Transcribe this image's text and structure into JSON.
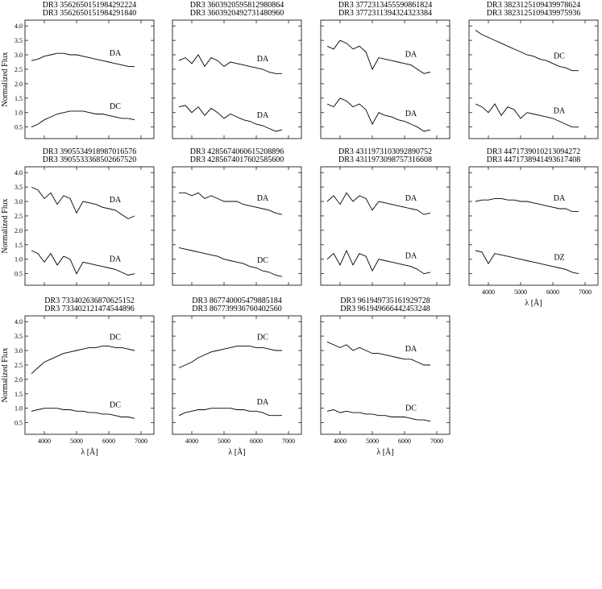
{
  "chart_data": [
    {
      "type": "line",
      "x": [
        3600,
        3800,
        4000,
        4200,
        4400,
        4600,
        4800,
        5000,
        5200,
        5400,
        5600,
        5800,
        6000,
        6200,
        6400,
        6600,
        6800
      ],
      "xlim": [
        3400,
        7400
      ],
      "xticks": [
        4000,
        5000,
        6000,
        7000
      ],
      "ylim": [
        0.1,
        4.2
      ],
      "yticks": [
        0.5,
        {
          "value": 1,
          "label": "1.0"
        },
        1.5,
        {
          "value": 2,
          "label": "2.0"
        },
        2.5,
        {
          "value": 3,
          "label": "3.0"
        },
        3.5,
        {
          "value": 4,
          "label": "4.0"
        }
      ],
      "ylabel": "Normalized Flux",
      "series": [
        {
          "name": "DR3 3562650151984292224",
          "label": "DA",
          "color": "#000000",
          "values": [
            2.8,
            2.85,
            2.95,
            3.0,
            3.05,
            3.05,
            3.0,
            3.0,
            2.95,
            2.9,
            2.85,
            2.8,
            2.75,
            2.7,
            2.65,
            2.6,
            2.6
          ]
        },
        {
          "name": "DR3 3562650151984291840",
          "label": "DC",
          "color": "#000000",
          "values": [
            0.5,
            0.6,
            0.75,
            0.85,
            0.95,
            1.0,
            1.05,
            1.05,
            1.05,
            1.0,
            0.95,
            0.95,
            0.9,
            0.85,
            0.8,
            0.8,
            0.75
          ]
        }
      ]
    },
    {
      "type": "line",
      "x": [
        3600,
        3800,
        4000,
        4200,
        4400,
        4600,
        4800,
        5000,
        5200,
        5400,
        5600,
        5800,
        6000,
        6200,
        6400,
        6600,
        6800
      ],
      "xlim": [
        3400,
        7400
      ],
      "xticks": [
        4000,
        5000,
        6000,
        7000
      ],
      "ylim": [
        0.1,
        4.2
      ],
      "yticks": [
        0.5,
        {
          "value": 1,
          "label": "1.0"
        },
        1.5,
        {
          "value": 2,
          "label": "2.0"
        },
        2.5,
        {
          "value": 3,
          "label": "3.0"
        },
        3.5,
        {
          "value": 4,
          "label": "4.0"
        }
      ],
      "series": [
        {
          "name": "DR3 3603920595812980864",
          "label": "DA",
          "color": "#000000",
          "values": [
            2.8,
            2.9,
            2.7,
            3.0,
            2.6,
            2.9,
            2.8,
            2.6,
            2.75,
            2.7,
            2.65,
            2.6,
            2.55,
            2.5,
            2.4,
            2.35,
            2.35
          ]
        },
        {
          "name": "DR3 3603920492731480960",
          "label": "DA",
          "color": "#000000",
          "values": [
            1.2,
            1.25,
            1.0,
            1.2,
            0.9,
            1.15,
            1.0,
            0.8,
            0.95,
            0.85,
            0.75,
            0.7,
            0.6,
            0.55,
            0.45,
            0.35,
            0.4
          ]
        }
      ]
    },
    {
      "type": "line",
      "x": [
        3600,
        3800,
        4000,
        4200,
        4400,
        4600,
        4800,
        5000,
        5200,
        5400,
        5600,
        5800,
        6000,
        6200,
        6400,
        6600,
        6800
      ],
      "xlim": [
        3400,
        7400
      ],
      "xticks": [
        4000,
        5000,
        6000,
        7000
      ],
      "ylim": [
        0.1,
        4.2
      ],
      "yticks": [
        0.5,
        {
          "value": 1,
          "label": "1.0"
        },
        1.5,
        {
          "value": 2,
          "label": "2.0"
        },
        2.5,
        {
          "value": 3,
          "label": "3.0"
        },
        3.5,
        {
          "value": 4,
          "label": "4.0"
        }
      ],
      "series": [
        {
          "name": "DR3 3772313455590861824",
          "label": "DA",
          "color": "#000000",
          "values": [
            3.3,
            3.2,
            3.5,
            3.4,
            3.2,
            3.3,
            3.1,
            2.5,
            2.9,
            2.85,
            2.8,
            2.75,
            2.7,
            2.65,
            2.5,
            2.35,
            2.4
          ]
        },
        {
          "name": "DR3 3772311394324323384",
          "label": "DA",
          "color": "#000000",
          "values": [
            1.3,
            1.2,
            1.5,
            1.4,
            1.2,
            1.3,
            1.1,
            0.6,
            1.0,
            0.9,
            0.85,
            0.75,
            0.7,
            0.6,
            0.5,
            0.35,
            0.4
          ]
        }
      ]
    },
    {
      "type": "line",
      "x": [
        3600,
        3800,
        4000,
        4200,
        4400,
        4600,
        4800,
        5000,
        5200,
        5400,
        5600,
        5800,
        6000,
        6200,
        6400,
        6600,
        6800
      ],
      "xlim": [
        3400,
        7400
      ],
      "xticks": [
        4000,
        5000,
        6000,
        7000
      ],
      "ylim": [
        0.1,
        4.2
      ],
      "yticks": [
        0.5,
        {
          "value": 1,
          "label": "1.0"
        },
        1.5,
        {
          "value": 2,
          "label": "2.0"
        },
        2.5,
        {
          "value": 3,
          "label": "3.0"
        },
        3.5,
        {
          "value": 4,
          "label": "4.0"
        }
      ],
      "series": [
        {
          "name": "DR3 3823125109439978624",
          "label": "DC",
          "color": "#000000",
          "values": [
            3.85,
            3.7,
            3.6,
            3.5,
            3.4,
            3.3,
            3.2,
            3.1,
            3.0,
            2.95,
            2.85,
            2.8,
            2.7,
            2.6,
            2.55,
            2.45,
            2.45
          ]
        },
        {
          "name": "DR3 3823125109439975936",
          "label": "DA",
          "color": "#000000",
          "values": [
            1.3,
            1.2,
            1.0,
            1.3,
            0.9,
            1.2,
            1.1,
            0.8,
            1.0,
            0.95,
            0.9,
            0.85,
            0.8,
            0.7,
            0.6,
            0.5,
            0.5
          ]
        }
      ]
    },
    {
      "type": "line",
      "x": [
        3600,
        3800,
        4000,
        4200,
        4400,
        4600,
        4800,
        5000,
        5200,
        5400,
        5600,
        5800,
        6000,
        6200,
        6400,
        6600,
        6800
      ],
      "xlim": [
        3400,
        7400
      ],
      "xticks": [
        4000,
        5000,
        6000,
        7000
      ],
      "ylim": [
        0.1,
        4.2
      ],
      "yticks": [
        0.5,
        {
          "value": 1,
          "label": "1.0"
        },
        1.5,
        {
          "value": 2,
          "label": "2.0"
        },
        2.5,
        {
          "value": 3,
          "label": "3.0"
        },
        3.5,
        {
          "value": 4,
          "label": "4.0"
        }
      ],
      "ylabel": "Normalized Flux",
      "series": [
        {
          "name": "DR3 3905534918987016576",
          "label": "DA",
          "color": "#000000",
          "values": [
            3.5,
            3.4,
            3.1,
            3.3,
            2.9,
            3.2,
            3.1,
            2.6,
            3.0,
            2.95,
            2.9,
            2.8,
            2.75,
            2.7,
            2.55,
            2.4,
            2.5
          ]
        },
        {
          "name": "DR3 3905533368502667520",
          "label": "DA",
          "color": "#000000",
          "values": [
            1.3,
            1.2,
            0.9,
            1.2,
            0.8,
            1.1,
            1.0,
            0.5,
            0.9,
            0.85,
            0.8,
            0.75,
            0.7,
            0.65,
            0.55,
            0.45,
            0.5
          ]
        }
      ]
    },
    {
      "type": "line",
      "x": [
        3600,
        3800,
        4000,
        4200,
        4400,
        4600,
        4800,
        5000,
        5200,
        5400,
        5600,
        5800,
        6000,
        6200,
        6400,
        6600,
        6800
      ],
      "xlim": [
        3400,
        7400
      ],
      "xticks": [
        4000,
        5000,
        6000,
        7000
      ],
      "ylim": [
        0.1,
        4.2
      ],
      "yticks": [
        0.5,
        {
          "value": 1,
          "label": "1.0"
        },
        1.5,
        {
          "value": 2,
          "label": "2.0"
        },
        2.5,
        {
          "value": 3,
          "label": "3.0"
        },
        3.5,
        {
          "value": 4,
          "label": "4.0"
        }
      ],
      "series": [
        {
          "name": "DR3 4285674060615208896",
          "label": "DA",
          "color": "#000000",
          "values": [
            3.3,
            3.3,
            3.2,
            3.3,
            3.1,
            3.2,
            3.1,
            3.0,
            3.0,
            3.0,
            2.9,
            2.85,
            2.8,
            2.75,
            2.7,
            2.6,
            2.55
          ]
        },
        {
          "name": "DR3 4285674017602585600",
          "label": "DC",
          "color": "#000000",
          "values": [
            1.4,
            1.35,
            1.3,
            1.25,
            1.2,
            1.15,
            1.1,
            1.0,
            0.95,
            0.9,
            0.85,
            0.75,
            0.7,
            0.6,
            0.55,
            0.45,
            0.4
          ]
        }
      ]
    },
    {
      "type": "line",
      "x": [
        3600,
        3800,
        4000,
        4200,
        4400,
        4600,
        4800,
        5000,
        5200,
        5400,
        5600,
        5800,
        6000,
        6200,
        6400,
        6600,
        6800
      ],
      "xlim": [
        3400,
        7400
      ],
      "xticks": [
        4000,
        5000,
        6000,
        7000
      ],
      "ylim": [
        0.1,
        4.2
      ],
      "yticks": [
        0.5,
        {
          "value": 1,
          "label": "1.0"
        },
        1.5,
        {
          "value": 2,
          "label": "2.0"
        },
        2.5,
        {
          "value": 3,
          "label": "3.0"
        },
        3.5,
        {
          "value": 4,
          "label": "4.0"
        }
      ],
      "series": [
        {
          "name": "DR3 4311973103092890752",
          "label": "DA",
          "color": "#000000",
          "values": [
            3.0,
            3.2,
            2.9,
            3.3,
            3.0,
            3.2,
            3.1,
            2.7,
            3.0,
            2.95,
            2.9,
            2.85,
            2.8,
            2.75,
            2.7,
            2.55,
            2.6
          ]
        },
        {
          "name": "DR3 4311973098757316608",
          "label": "DA",
          "color": "#000000",
          "values": [
            1.0,
            1.2,
            0.8,
            1.3,
            0.8,
            1.2,
            1.1,
            0.6,
            1.0,
            0.95,
            0.9,
            0.85,
            0.8,
            0.75,
            0.65,
            0.5,
            0.55
          ]
        }
      ]
    },
    {
      "type": "line",
      "x": [
        3600,
        3800,
        4000,
        4200,
        4400,
        4600,
        4800,
        5000,
        5200,
        5400,
        5600,
        5800,
        6000,
        6200,
        6400,
        6600,
        6800
      ],
      "xlim": [
        3400,
        7400
      ],
      "xticks": [
        4000,
        5000,
        6000,
        7000
      ],
      "ylim": [
        0.1,
        4.2
      ],
      "yticks": [
        0.5,
        {
          "value": 1,
          "label": "1.0"
        },
        1.5,
        {
          "value": 2,
          "label": "2.0"
        },
        2.5,
        {
          "value": 3,
          "label": "3.0"
        },
        3.5,
        {
          "value": 4,
          "label": "4.0"
        }
      ],
      "xlabel": "λ [Å]",
      "series": [
        {
          "name": "DR3 4471739010213094272",
          "label": "DA",
          "color": "#000000",
          "values": [
            3.0,
            3.05,
            3.05,
            3.1,
            3.1,
            3.05,
            3.05,
            3.0,
            3.0,
            2.95,
            2.9,
            2.85,
            2.8,
            2.75,
            2.75,
            2.65,
            2.65
          ]
        },
        {
          "name": "DR3 4471738941493617408",
          "label": "DZ",
          "color": "#000000",
          "values": [
            1.3,
            1.25,
            0.85,
            1.2,
            1.15,
            1.1,
            1.05,
            1.0,
            0.95,
            0.9,
            0.85,
            0.8,
            0.75,
            0.7,
            0.65,
            0.55,
            0.5
          ]
        }
      ]
    },
    {
      "type": "line",
      "x": [
        3600,
        3800,
        4000,
        4200,
        4400,
        4600,
        4800,
        5000,
        5200,
        5400,
        5600,
        5800,
        6000,
        6200,
        6400,
        6600,
        6800
      ],
      "xlim": [
        3400,
        7400
      ],
      "xticks": [
        4000,
        5000,
        6000,
        7000
      ],
      "ylim": [
        0.1,
        4.2
      ],
      "yticks": [
        0.5,
        {
          "value": 1,
          "label": "1.0"
        },
        1.5,
        {
          "value": 2,
          "label": "2.0"
        },
        2.5,
        {
          "value": 3,
          "label": "3.0"
        },
        3.5,
        {
          "value": 4,
          "label": "4.0"
        }
      ],
      "ylabel": "Normalized Flux",
      "xlabel": "λ [Å]",
      "series": [
        {
          "name": "DR3 7334026368706251​52",
          "label": "DC",
          "color": "#000000",
          "values": [
            2.2,
            2.4,
            2.6,
            2.7,
            2.8,
            2.9,
            2.95,
            3.0,
            3.05,
            3.1,
            3.1,
            3.15,
            3.15,
            3.1,
            3.1,
            3.05,
            3.0
          ]
        },
        {
          "name": "DR3 7334021214745448​96",
          "label": "DC",
          "color": "#000000",
          "values": [
            0.9,
            0.95,
            1.0,
            1.0,
            1.0,
            0.95,
            0.95,
            0.9,
            0.9,
            0.85,
            0.85,
            0.8,
            0.8,
            0.75,
            0.7,
            0.7,
            0.65
          ]
        }
      ]
    },
    {
      "type": "line",
      "x": [
        3600,
        3800,
        4000,
        4200,
        4400,
        4600,
        4800,
        5000,
        5200,
        5400,
        5600,
        5800,
        6000,
        6200,
        6400,
        6600,
        6800
      ],
      "xlim": [
        3400,
        7400
      ],
      "xticks": [
        4000,
        5000,
        6000,
        7000
      ],
      "ylim": [
        0.1,
        4.2
      ],
      "yticks": [
        0.5,
        {
          "value": 1,
          "label": "1.0"
        },
        1.5,
        {
          "value": 2,
          "label": "2.0"
        },
        2.5,
        {
          "value": 3,
          "label": "3.0"
        },
        3.5,
        {
          "value": 4,
          "label": "4.0"
        }
      ],
      "xlabel": "λ [Å]",
      "series": [
        {
          "name": "DR3 867740005479885184",
          "label": "DC",
          "color": "#000000",
          "values": [
            2.4,
            2.5,
            2.6,
            2.75,
            2.85,
            2.95,
            3.0,
            3.05,
            3.1,
            3.15,
            3.15,
            3.15,
            3.1,
            3.1,
            3.05,
            3.0,
            3.0
          ]
        },
        {
          "name": "DR3 867739936760402560",
          "label": "DA",
          "color": "#000000",
          "values": [
            0.75,
            0.85,
            0.9,
            0.95,
            0.95,
            1.0,
            1.0,
            1.0,
            1.0,
            0.95,
            0.95,
            0.9,
            0.9,
            0.85,
            0.75,
            0.75,
            0.75
          ]
        }
      ]
    },
    {
      "type": "line",
      "x": [
        3600,
        3800,
        4000,
        4200,
        4400,
        4600,
        4800,
        5000,
        5200,
        5400,
        5600,
        5800,
        6000,
        6200,
        6400,
        6600,
        6800
      ],
      "xlim": [
        3400,
        7400
      ],
      "xticks": [
        4000,
        5000,
        6000,
        7000
      ],
      "ylim": [
        0.1,
        4.2
      ],
      "yticks": [
        0.5,
        {
          "value": 1,
          "label": "1.0"
        },
        1.5,
        {
          "value": 2,
          "label": "2.0"
        },
        2.5,
        {
          "value": 3,
          "label": "3.0"
        },
        3.5,
        {
          "value": 4,
          "label": "4.0"
        }
      ],
      "xlabel": "λ [Å]",
      "series": [
        {
          "name": "DR3 961949735161929728",
          "label": "DA",
          "color": "#000000",
          "values": [
            3.3,
            3.2,
            3.1,
            3.2,
            3.0,
            3.1,
            3.0,
            2.9,
            2.9,
            2.85,
            2.8,
            2.75,
            2.7,
            2.7,
            2.6,
            2.5,
            2.5
          ]
        },
        {
          "name": "DR3 961949666442453248",
          "label": "DC",
          "color": "#000000",
          "values": [
            0.9,
            0.95,
            0.85,
            0.9,
            0.85,
            0.85,
            0.8,
            0.8,
            0.75,
            0.75,
            0.7,
            0.7,
            0.7,
            0.65,
            0.6,
            0.6,
            0.55
          ]
        }
      ]
    }
  ]
}
